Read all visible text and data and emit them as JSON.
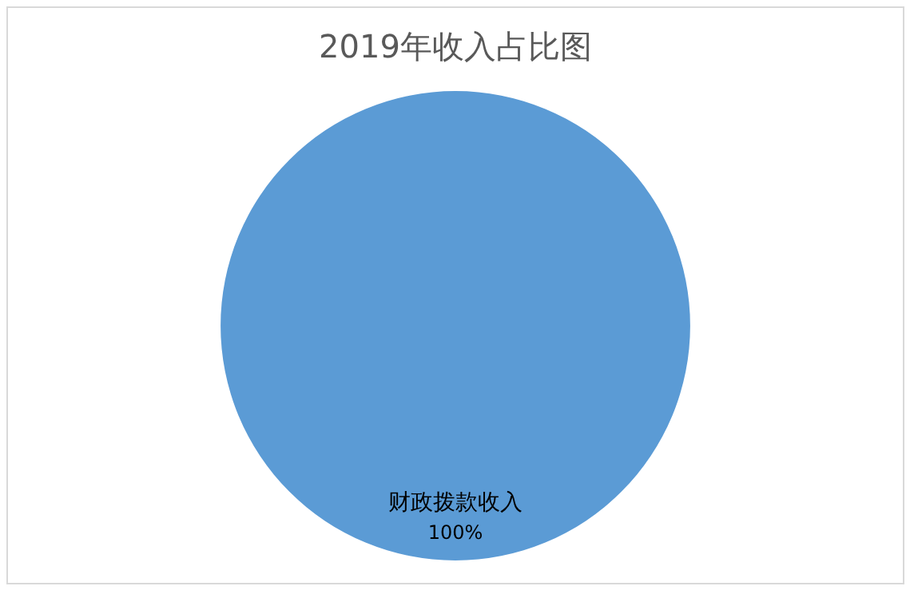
{
  "chart_data": {
    "type": "pie",
    "title": "2019年收入占比图",
    "categories": [
      "财政拨款收入"
    ],
    "values": [
      100
    ],
    "colors": [
      "#5b9bd5"
    ],
    "value_labels": [
      "100%"
    ],
    "legend": false
  }
}
